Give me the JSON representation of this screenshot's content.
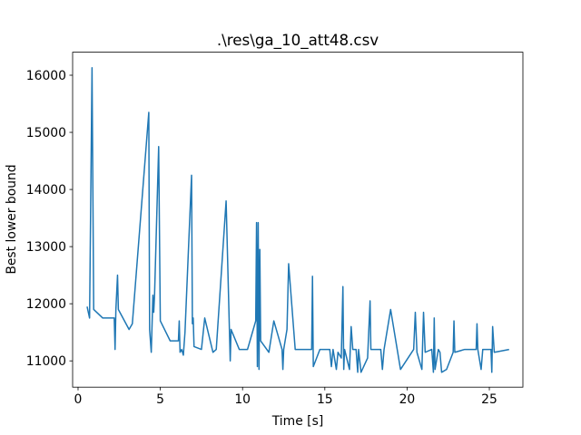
{
  "chart_data": {
    "type": "line",
    "title": ".\\res\\ga_10_att48.csv",
    "x_label": "Time [s]",
    "y_label": "Best lower bound",
    "color": "#1f77b4",
    "x": [
      0.55,
      0.7,
      0.85,
      0.95,
      1.5,
      2.2,
      2.25,
      2.3,
      2.4,
      2.45,
      3.1,
      3.3,
      4.3,
      4.35,
      4.45,
      4.55,
      4.6,
      4.65,
      4.9,
      5.0,
      5.6,
      6.1,
      6.15,
      6.2,
      6.3,
      6.4,
      6.5,
      6.9,
      6.95,
      7.0,
      7.05,
      7.5,
      7.7,
      8.2,
      8.4,
      9.0,
      9.2,
      9.25,
      9.3,
      9.8,
      10.3,
      10.8,
      10.85,
      10.9,
      10.95,
      11.0,
      11.05,
      11.1,
      11.6,
      11.9,
      12.4,
      12.45,
      12.5,
      12.7,
      12.8,
      13.2,
      14.2,
      14.25,
      14.3,
      14.7,
      15.3,
      15.4,
      15.5,
      15.7,
      15.8,
      16.0,
      16.1,
      16.15,
      16.2,
      16.5,
      16.6,
      16.7,
      16.9,
      17.0,
      17.05,
      17.2,
      17.6,
      17.75,
      17.8,
      18.4,
      18.5,
      18.6,
      19.0,
      19.6,
      20.4,
      20.5,
      20.6,
      20.9,
      21.0,
      21.1,
      21.5,
      21.6,
      21.65,
      21.7,
      21.9,
      22.0,
      22.1,
      22.4,
      22.8,
      22.85,
      22.9,
      23.5,
      24.2,
      24.25,
      24.3,
      24.5,
      24.6,
      25.1,
      25.15,
      25.2,
      25.3,
      26.2
    ],
    "values": [
      11950,
      11750,
      16130,
      11900,
      11750,
      11750,
      11200,
      11900,
      12500,
      11900,
      11550,
      11650,
      15350,
      11550,
      11150,
      12150,
      11850,
      12150,
      14750,
      11700,
      11350,
      11350,
      11700,
      11150,
      11200,
      11100,
      11500,
      14250,
      11650,
      11750,
      11250,
      11200,
      11750,
      11150,
      11200,
      13800,
      11550,
      11000,
      11550,
      11200,
      11200,
      11700,
      13420,
      10900,
      13420,
      10850,
      12950,
      11350,
      11150,
      11700,
      11200,
      10850,
      11200,
      11550,
      12700,
      11200,
      11200,
      12480,
      10900,
      11200,
      11200,
      10900,
      11200,
      10850,
      11150,
      11050,
      12300,
      10850,
      11200,
      10850,
      11600,
      11200,
      11200,
      10800,
      11200,
      10800,
      11050,
      12050,
      11200,
      11200,
      10850,
      11200,
      11900,
      10850,
      11200,
      11850,
      11150,
      10850,
      11850,
      11150,
      11200,
      10800,
      11750,
      10850,
      11200,
      11150,
      10800,
      10850,
      11150,
      11700,
      11150,
      11200,
      11200,
      11650,
      11200,
      10850,
      11200,
      11200,
      10800,
      11600,
      11150,
      11200
    ],
    "xlim": [
      -0.33,
      27.04
    ],
    "ylim": [
      10540,
      16403
    ],
    "xticks": [
      0,
      5,
      10,
      15,
      20,
      25
    ],
    "yticks": [
      11000,
      12000,
      13000,
      14000,
      15000,
      16000
    ]
  }
}
